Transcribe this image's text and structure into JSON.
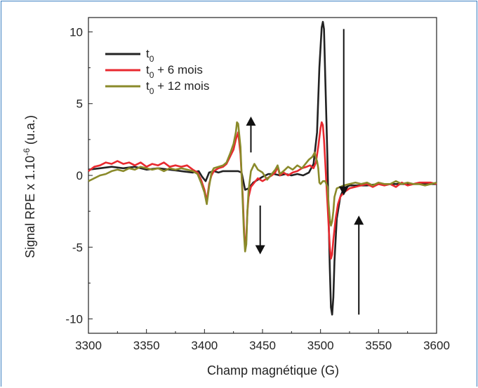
{
  "chart_data": {
    "type": "line",
    "xlabel": "Champ magnétique (G)",
    "ylabel_main": "Signal RPE x 1.10",
    "ylabel_exp": "-6",
    "ylabel_unit": " (u.a.)",
    "xlim": [
      3300,
      3600
    ],
    "ylim": [
      -11,
      11
    ],
    "xticks": [
      3300,
      3350,
      3400,
      3450,
      3500,
      3550,
      3600
    ],
    "yticks": [
      -10,
      -5,
      0,
      5,
      10
    ],
    "grid": false,
    "legend_position": "top-left",
    "series": [
      {
        "name_main": "t",
        "name_sub": "0",
        "name_rest": "",
        "color": "#222222",
        "points": [
          [
            3300,
            0.4
          ],
          [
            3310,
            0.5
          ],
          [
            3320,
            0.6
          ],
          [
            3330,
            0.5
          ],
          [
            3340,
            0.6
          ],
          [
            3350,
            0.4
          ],
          [
            3360,
            0.5
          ],
          [
            3370,
            0.4
          ],
          [
            3380,
            0.3
          ],
          [
            3390,
            0.2
          ],
          [
            3395,
            0.3
          ],
          [
            3398,
            -0.1
          ],
          [
            3401,
            -0.4
          ],
          [
            3404,
            0.2
          ],
          [
            3408,
            0.3
          ],
          [
            3412,
            0.2
          ],
          [
            3416,
            0.3
          ],
          [
            3420,
            0.3
          ],
          [
            3425,
            0.3
          ],
          [
            3429,
            0.3
          ],
          [
            3432,
            0.2
          ],
          [
            3435,
            -1.0
          ],
          [
            3438,
            -0.9
          ],
          [
            3442,
            -0.5
          ],
          [
            3446,
            -0.3
          ],
          [
            3450,
            -0.1
          ],
          [
            3455,
            0.1
          ],
          [
            3460,
            0.1
          ],
          [
            3465,
            0.0
          ],
          [
            3470,
            0.1
          ],
          [
            3475,
            0.0
          ],
          [
            3480,
            0.1
          ],
          [
            3485,
            0.0
          ],
          [
            3490,
            0.2
          ],
          [
            3494,
            0.8
          ],
          [
            3497,
            3.0
          ],
          [
            3499,
            7.5
          ],
          [
            3501,
            10.3
          ],
          [
            3502,
            10.7
          ],
          [
            3503,
            10.2
          ],
          [
            3504,
            7.0
          ],
          [
            3506,
            1.0
          ],
          [
            3507,
            -3.0
          ],
          [
            3508,
            -6.5
          ],
          [
            3509,
            -9.2
          ],
          [
            3510,
            -9.7
          ],
          [
            3511,
            -8.5
          ],
          [
            3512,
            -6.0
          ],
          [
            3514,
            -3.0
          ],
          [
            3517,
            -1.5
          ],
          [
            3520,
            -0.9
          ],
          [
            3525,
            -0.7
          ],
          [
            3530,
            -0.7
          ],
          [
            3540,
            -0.7
          ],
          [
            3550,
            -0.6
          ],
          [
            3560,
            -0.6
          ],
          [
            3570,
            -0.6
          ],
          [
            3580,
            -0.6
          ],
          [
            3590,
            -0.6
          ],
          [
            3600,
            -0.6
          ]
        ]
      },
      {
        "name_main": "t",
        "name_sub": "0",
        "name_rest": " + 6 mois",
        "color": "#e8292f",
        "points": [
          [
            3300,
            0.3
          ],
          [
            3305,
            0.6
          ],
          [
            3310,
            0.7
          ],
          [
            3315,
            0.9
          ],
          [
            3320,
            0.8
          ],
          [
            3325,
            1.0
          ],
          [
            3330,
            0.8
          ],
          [
            3335,
            0.9
          ],
          [
            3340,
            0.7
          ],
          [
            3345,
            0.9
          ],
          [
            3350,
            0.6
          ],
          [
            3355,
            0.8
          ],
          [
            3360,
            0.7
          ],
          [
            3365,
            0.9
          ],
          [
            3370,
            0.6
          ],
          [
            3375,
            0.7
          ],
          [
            3380,
            0.6
          ],
          [
            3385,
            0.7
          ],
          [
            3390,
            0.4
          ],
          [
            3394,
            0.2
          ],
          [
            3397,
            -0.3
          ],
          [
            3400,
            -1.0
          ],
          [
            3402,
            -1.8
          ],
          [
            3404,
            -0.6
          ],
          [
            3406,
            0.0
          ],
          [
            3408,
            0.3
          ],
          [
            3412,
            0.5
          ],
          [
            3416,
            0.6
          ],
          [
            3419,
            0.8
          ],
          [
            3422,
            1.3
          ],
          [
            3425,
            1.8
          ],
          [
            3427,
            2.5
          ],
          [
            3429,
            3.0
          ],
          [
            3431,
            1.5
          ],
          [
            3433,
            -1.5
          ],
          [
            3434,
            -3.5
          ],
          [
            3435,
            -5.0
          ],
          [
            3436,
            -4.5
          ],
          [
            3437,
            -2.5
          ],
          [
            3438,
            -1.5
          ],
          [
            3440,
            -0.8
          ],
          [
            3443,
            -0.5
          ],
          [
            3446,
            -0.2
          ],
          [
            3450,
            -0.4
          ],
          [
            3454,
            -0.2
          ],
          [
            3458,
            0.0
          ],
          [
            3461,
            0.2
          ],
          [
            3463,
            0.6
          ],
          [
            3465,
            0.0
          ],
          [
            3468,
            0.2
          ],
          [
            3472,
            0.0
          ],
          [
            3476,
            0.2
          ],
          [
            3480,
            0.3
          ],
          [
            3484,
            0.5
          ],
          [
            3488,
            0.6
          ],
          [
            3491,
            0.7
          ],
          [
            3494,
            0.5
          ],
          [
            3496,
            0.9
          ],
          [
            3498,
            2.0
          ],
          [
            3500,
            3.3
          ],
          [
            3501,
            3.7
          ],
          [
            3502,
            3.5
          ],
          [
            3503,
            2.5
          ],
          [
            3504,
            1.0
          ],
          [
            3505,
            -0.5
          ],
          [
            3506,
            -2.0
          ],
          [
            3507,
            -3.5
          ],
          [
            3508,
            -5.0
          ],
          [
            3509,
            -5.8
          ],
          [
            3510,
            -5.5
          ],
          [
            3511,
            -4.5
          ],
          [
            3513,
            -3.0
          ],
          [
            3515,
            -2.0
          ],
          [
            3517,
            -1.5
          ],
          [
            3520,
            -1.2
          ],
          [
            3525,
            -0.9
          ],
          [
            3530,
            -0.8
          ],
          [
            3535,
            -0.7
          ],
          [
            3540,
            -0.6
          ],
          [
            3545,
            -0.8
          ],
          [
            3550,
            -0.6
          ],
          [
            3555,
            -0.7
          ],
          [
            3560,
            -0.6
          ],
          [
            3565,
            -0.8
          ],
          [
            3570,
            -0.5
          ],
          [
            3575,
            -0.7
          ],
          [
            3580,
            -0.6
          ],
          [
            3585,
            -0.5
          ],
          [
            3590,
            -0.5
          ],
          [
            3595,
            -0.5
          ],
          [
            3600,
            -0.6
          ]
        ]
      },
      {
        "name_main": "t",
        "name_sub": "0",
        "name_rest": " + 12 mois",
        "color": "#8a8a2a",
        "points": [
          [
            3300,
            -0.4
          ],
          [
            3305,
            -0.2
          ],
          [
            3310,
            0.0
          ],
          [
            3315,
            0.1
          ],
          [
            3320,
            0.3
          ],
          [
            3325,
            0.4
          ],
          [
            3330,
            0.3
          ],
          [
            3335,
            0.5
          ],
          [
            3340,
            0.4
          ],
          [
            3345,
            0.6
          ],
          [
            3350,
            0.5
          ],
          [
            3355,
            0.4
          ],
          [
            3360,
            0.5
          ],
          [
            3365,
            0.3
          ],
          [
            3370,
            0.5
          ],
          [
            3375,
            0.4
          ],
          [
            3380,
            0.5
          ],
          [
            3385,
            0.4
          ],
          [
            3390,
            0.3
          ],
          [
            3394,
            0.1
          ],
          [
            3397,
            -0.5
          ],
          [
            3400,
            -1.2
          ],
          [
            3402,
            -2.0
          ],
          [
            3404,
            -0.8
          ],
          [
            3406,
            0.2
          ],
          [
            3408,
            0.5
          ],
          [
            3412,
            0.6
          ],
          [
            3416,
            0.7
          ],
          [
            3419,
            0.9
          ],
          [
            3422,
            1.5
          ],
          [
            3425,
            2.2
          ],
          [
            3427,
            3.0
          ],
          [
            3428,
            3.7
          ],
          [
            3429,
            3.6
          ],
          [
            3431,
            2.0
          ],
          [
            3433,
            -2.0
          ],
          [
            3434,
            -4.0
          ],
          [
            3435,
            -5.3
          ],
          [
            3436,
            -4.8
          ],
          [
            3437,
            -2.5
          ],
          [
            3438,
            -1.0
          ],
          [
            3440,
            0.3
          ],
          [
            3443,
            0.8
          ],
          [
            3446,
            0.4
          ],
          [
            3450,
            0.2
          ],
          [
            3454,
            -0.3
          ],
          [
            3458,
            0.1
          ],
          [
            3461,
            0.4
          ],
          [
            3463,
            0.7
          ],
          [
            3465,
            0.1
          ],
          [
            3468,
            0.3
          ],
          [
            3472,
            0.6
          ],
          [
            3476,
            0.4
          ],
          [
            3480,
            0.7
          ],
          [
            3484,
            0.5
          ],
          [
            3488,
            0.9
          ],
          [
            3490,
            1.1
          ],
          [
            3493,
            1.3
          ],
          [
            3495,
            1.6
          ],
          [
            3496,
            1.2
          ],
          [
            3497,
            1.0
          ],
          [
            3498,
            0.5
          ],
          [
            3499,
            -0.5
          ],
          [
            3500,
            -0.6
          ],
          [
            3502,
            -0.4
          ],
          [
            3504,
            -0.4
          ],
          [
            3506,
            -0.8
          ],
          [
            3507,
            -2.0
          ],
          [
            3508,
            -3.0
          ],
          [
            3509,
            -3.5
          ],
          [
            3510,
            -3.2
          ],
          [
            3511,
            -2.5
          ],
          [
            3512,
            -1.5
          ],
          [
            3514,
            -0.9
          ],
          [
            3517,
            -0.8
          ],
          [
            3520,
            -0.7
          ],
          [
            3525,
            -0.6
          ],
          [
            3530,
            -0.5
          ],
          [
            3535,
            -0.6
          ],
          [
            3540,
            -0.5
          ],
          [
            3545,
            -0.7
          ],
          [
            3550,
            -0.5
          ],
          [
            3555,
            -0.6
          ],
          [
            3560,
            -0.6
          ],
          [
            3565,
            -0.4
          ],
          [
            3570,
            -0.6
          ],
          [
            3575,
            -0.5
          ],
          [
            3580,
            -0.6
          ],
          [
            3585,
            -0.6
          ],
          [
            3590,
            -0.7
          ],
          [
            3595,
            -0.6
          ],
          [
            3600,
            -0.5
          ]
        ]
      }
    ],
    "annotations": [
      {
        "type": "arrow",
        "x": 3440,
        "y_from": 1.6,
        "y_to": 4.1,
        "direction": "up"
      },
      {
        "type": "arrow",
        "x": 3448,
        "y_from": -2.1,
        "y_to": -5.5,
        "direction": "down"
      },
      {
        "type": "arrow",
        "x": 3520,
        "y_from": 10.2,
        "y_to": -1.4,
        "direction": "down"
      },
      {
        "type": "arrow",
        "x": 3533,
        "y_from": -9.7,
        "y_to": -2.8,
        "direction": "up"
      }
    ]
  }
}
